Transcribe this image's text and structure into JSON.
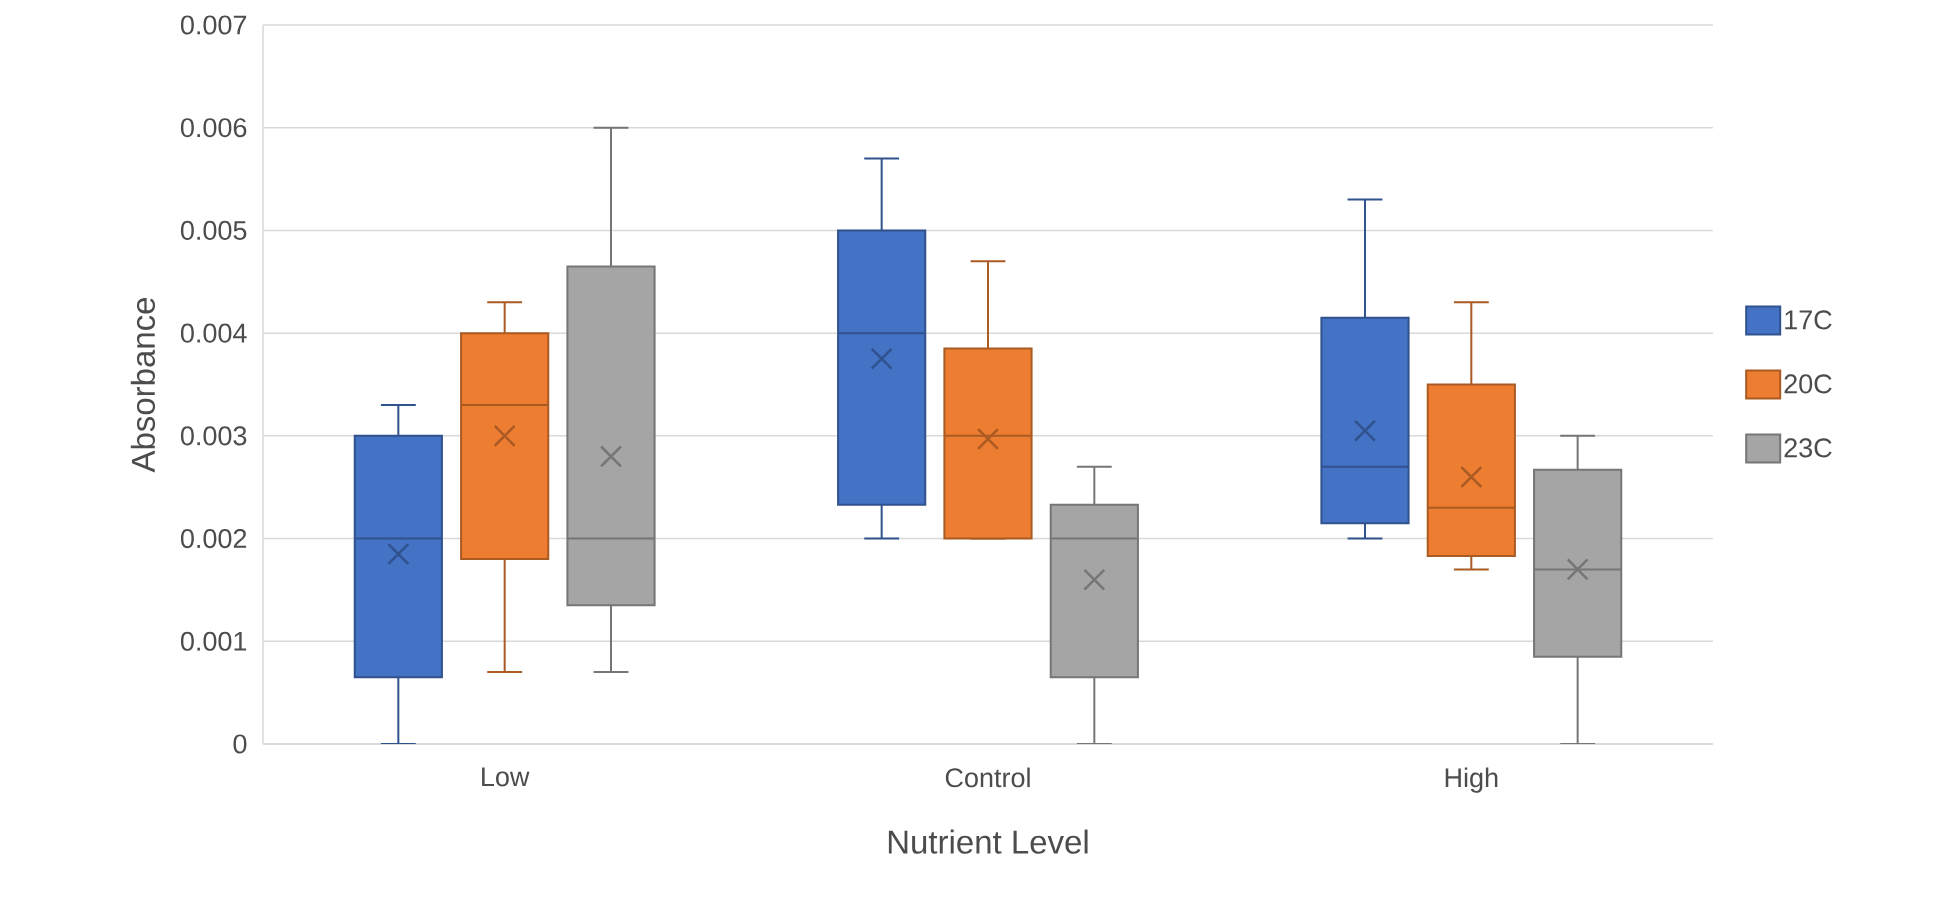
{
  "chart_data": {
    "type": "box",
    "xlabel": "Nutrient Level",
    "ylabel": "Absorbance",
    "categories": [
      "Low",
      "Control",
      "High"
    ],
    "ylim": [
      0,
      0.007
    ],
    "yticks": [
      0,
      0.001,
      0.002,
      0.003,
      0.004,
      0.005,
      0.006,
      0.007
    ],
    "grid": "y",
    "legend": "right",
    "series": [
      {
        "name": "17C",
        "color": "#4472c4",
        "boxes": [
          {
            "low": 0,
            "q1": 0.00065,
            "median": 0.002,
            "q3": 0.003,
            "high": 0.0033,
            "mean": 0.00185
          },
          {
            "low": 0.002,
            "q1": 0.00233,
            "median": 0.004,
            "q3": 0.005,
            "high": 0.0057,
            "mean": 0.00375
          },
          {
            "low": 0.002,
            "q1": 0.00215,
            "median": 0.0027,
            "q3": 0.00415,
            "high": 0.0053,
            "mean": 0.00305
          }
        ]
      },
      {
        "name": "20C",
        "color": "#ed7d31",
        "boxes": [
          {
            "low": 0.0007,
            "q1": 0.0018,
            "median": 0.0033,
            "q3": 0.004,
            "high": 0.0043,
            "mean": 0.003
          },
          {
            "low": 0.002,
            "q1": 0.002,
            "median": 0.003,
            "q3": 0.00385,
            "high": 0.0047,
            "mean": 0.00297
          },
          {
            "low": 0.0017,
            "q1": 0.00183,
            "median": 0.0023,
            "q3": 0.0035,
            "high": 0.0043,
            "mean": 0.0026
          }
        ]
      },
      {
        "name": "23C",
        "color": "#a5a5a5",
        "boxes": [
          {
            "low": 0.0007,
            "q1": 0.00135,
            "median": 0.002,
            "q3": 0.00465,
            "high": 0.006,
            "mean": 0.0028
          },
          {
            "low": 0,
            "q1": 0.00065,
            "median": 0.002,
            "q3": 0.00233,
            "high": 0.0027,
            "mean": 0.0016
          },
          {
            "low": 0,
            "q1": 0.00085,
            "median": 0.0017,
            "q3": 0.00267,
            "high": 0.003,
            "mean": 0.0017
          }
        ]
      }
    ]
  }
}
